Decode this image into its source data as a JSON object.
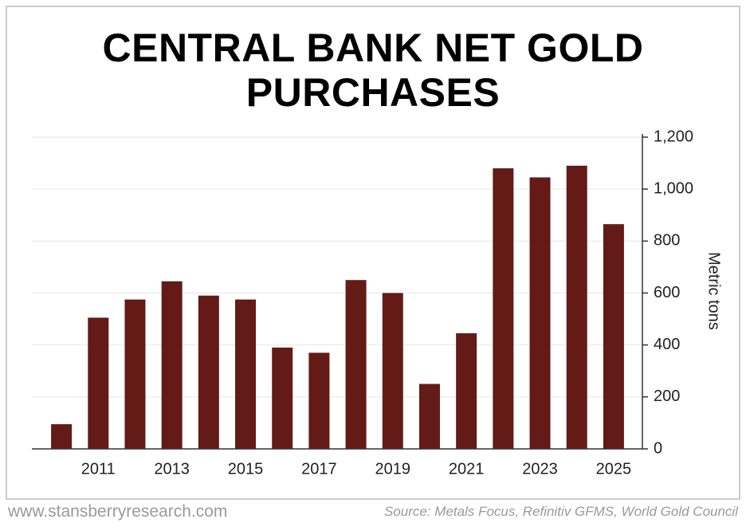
{
  "chart_data": {
    "type": "bar",
    "title": "CENTRAL BANK NET GOLD PURCHASES",
    "y_label": "Metric tons",
    "categories": [
      null,
      "2011",
      null,
      "2013",
      null,
      "2015",
      null,
      "2017",
      null,
      "2019",
      null,
      "2021",
      null,
      "2023",
      null,
      "2025"
    ],
    "values": [
      95,
      505,
      575,
      645,
      590,
      575,
      390,
      370,
      650,
      600,
      250,
      445,
      1080,
      1045,
      1090,
      865
    ],
    "color": "#641a17",
    "ylim": [
      0,
      1200
    ],
    "yticks": [
      0,
      200,
      400,
      600,
      800,
      {
        "value": 1000,
        "label": "1,000"
      },
      {
        "value": 1200,
        "label": "1,200"
      }
    ],
    "grid": true
  },
  "footer": {
    "website": "www.stansberryresearch.com",
    "source": "Source: Metals Focus, Refinitiv GFMS, World Gold Council"
  }
}
